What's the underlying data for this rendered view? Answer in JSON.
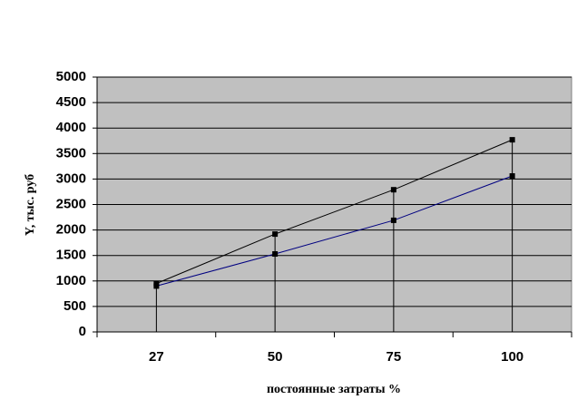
{
  "chart_data": {
    "type": "line",
    "x_label": "постоянные затраты %",
    "y_label": "Y, тыс. руб",
    "categories": [
      "27",
      "50",
      "75",
      "100"
    ],
    "series": [
      {
        "color": "#000000",
        "values": [
          950,
          1920,
          2790,
          3770
        ]
      },
      {
        "color": "#000080",
        "values": [
          900,
          1530,
          2190,
          3060
        ]
      }
    ],
    "ylim": [
      0,
      5000
    ],
    "yticks": [
      0,
      500,
      1000,
      1500,
      2000,
      2500,
      3000,
      3500,
      4000,
      4500,
      5000
    ],
    "grid": true,
    "drop_lines": true
  }
}
